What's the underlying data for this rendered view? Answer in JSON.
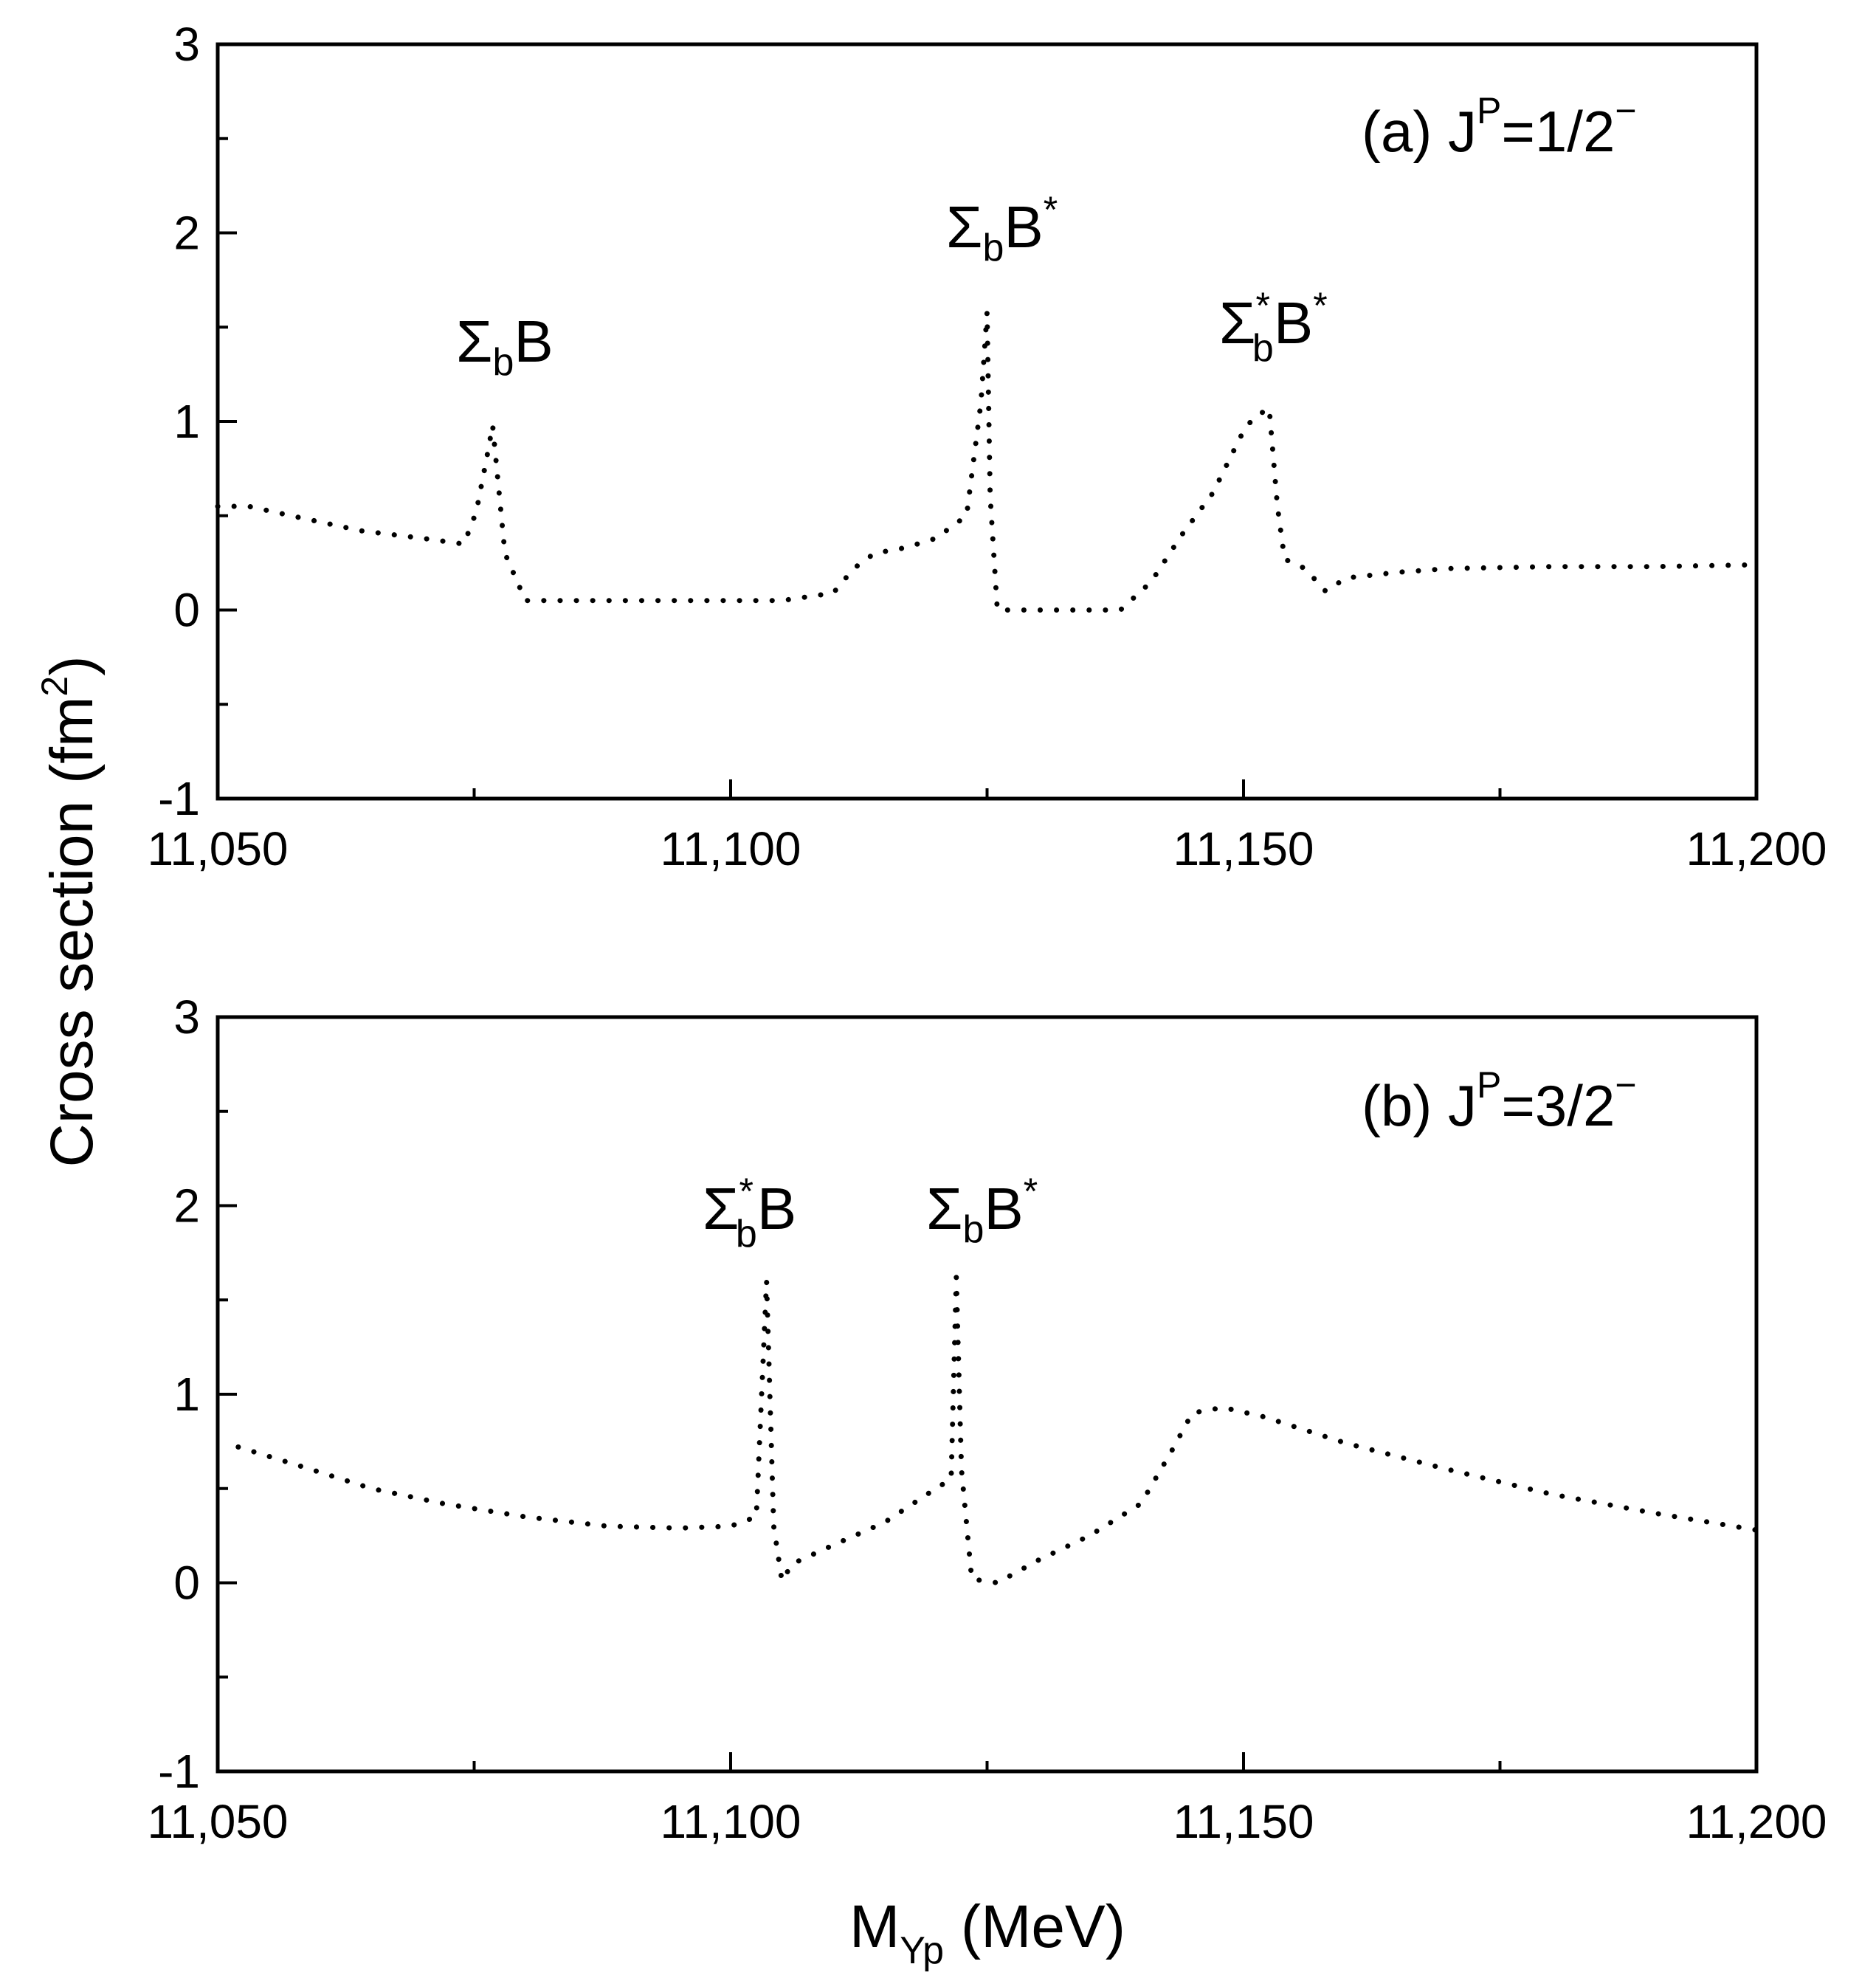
{
  "figure": {
    "ylabel_main": "Cross section (fm",
    "ylabel_sup": "2",
    "ylabel_close": ")",
    "xlabel_main": "M",
    "xlabel_sub": "Yp",
    "xlabel_unit": " (MeV)"
  },
  "chart_data": [
    {
      "type": "line",
      "title": "(a) J^P=1/2^-",
      "panel_label": {
        "prefix": "(a) J",
        "sup1": "P",
        "mid": "=1/2",
        "sup2": "−"
      },
      "xlabel": "M_Yp (MeV)",
      "ylabel": "Cross section (fm^2)",
      "xlim": [
        11050,
        11200
      ],
      "ylim": [
        -1,
        3
      ],
      "xticks": [
        11050,
        11100,
        11150,
        11200
      ],
      "xtick_labels": [
        "11,050",
        "11,100",
        "11,150",
        "11,200"
      ],
      "yticks": [
        -1,
        0,
        1,
        2,
        3
      ],
      "ytick_labels": [
        "-1",
        "0",
        "1",
        "2",
        "3"
      ],
      "line_style": "dotted",
      "series": [
        {
          "name": "J^P=1/2^-",
          "x": [
            11050,
            11053,
            11058,
            11064,
            11070,
            11074,
            11075.2,
            11076.2,
            11076.8,
            11078,
            11080,
            11085,
            11090,
            11095,
            11100,
            11105,
            11110,
            11112,
            11114,
            11117,
            11120,
            11123,
            11124.4,
            11125,
            11125.3,
            11126,
            11130,
            11135,
            11138,
            11141,
            11144,
            11147,
            11150,
            11151,
            11152.5,
            11153.3,
            11154,
            11156,
            11158,
            11160,
            11165,
            11170,
            11180,
            11190,
            11200
          ],
          "y": [
            0.55,
            0.55,
            0.49,
            0.42,
            0.38,
            0.35,
            0.52,
            0.8,
            0.98,
            0.3,
            0.05,
            0.05,
            0.05,
            0.05,
            0.05,
            0.05,
            0.09,
            0.22,
            0.3,
            0.33,
            0.38,
            0.5,
            1.1,
            1.58,
            0.6,
            0.0,
            0.0,
            0.0,
            0.0,
            0.15,
            0.4,
            0.62,
            0.95,
            1.02,
            1.07,
            0.55,
            0.27,
            0.22,
            0.1,
            0.17,
            0.2,
            0.22,
            0.23,
            0.23,
            0.24
          ]
        }
      ],
      "annotations": [
        {
          "main": "Σ",
          "sub": "b",
          "sup": "",
          "tail": "B",
          "tail_sup": ""
        },
        {
          "main": "Σ",
          "sub": "b",
          "sup": "",
          "tail": "B",
          "tail_sup": "*"
        },
        {
          "main": "Σ",
          "sub": "b",
          "sup": "*",
          "tail": "B",
          "tail_sup": "*"
        }
      ]
    },
    {
      "type": "line",
      "title": "(b) J^P=3/2^-",
      "panel_label": {
        "prefix": "(b) J",
        "sup1": "P",
        "mid": "=3/2",
        "sup2": "−"
      },
      "xlabel": "M_Yp (MeV)",
      "ylabel": "Cross section (fm^2)",
      "xlim": [
        11050,
        11200
      ],
      "ylim": [
        -1,
        3
      ],
      "xticks": [
        11050,
        11100,
        11150,
        11200
      ],
      "xtick_labels": [
        "11,050",
        "11,100",
        "11,150",
        "11,200"
      ],
      "yticks": [
        -1,
        0,
        1,
        2,
        3
      ],
      "ytick_labels": [
        "-1",
        "0",
        "1",
        "2",
        "3"
      ],
      "line_style": "dotted",
      "series": [
        {
          "name": "J^P=3/2^-",
          "x": [
            11052,
            11058,
            11065,
            11072,
            11080,
            11088,
            11095,
            11100,
            11102.5,
            11103.5,
            11104.2,
            11105,
            11106,
            11110,
            11115,
            11120,
            11121.5,
            11122,
            11122.5,
            11123.5,
            11126,
            11130,
            11135,
            11140,
            11143,
            11145,
            11148,
            11152,
            11160,
            11170,
            11180,
            11190,
            11200
          ],
          "y": [
            0.72,
            0.62,
            0.5,
            0.42,
            0.35,
            0.3,
            0.29,
            0.3,
            0.35,
            1.6,
            0.3,
            0.01,
            0.1,
            0.2,
            0.32,
            0.5,
            0.55,
            1.62,
            0.6,
            0.02,
            0.0,
            0.12,
            0.25,
            0.42,
            0.7,
            0.9,
            0.93,
            0.88,
            0.74,
            0.6,
            0.47,
            0.37,
            0.28
          ]
        }
      ],
      "annotations": [
        {
          "main": "Σ",
          "sub": "b",
          "sup": "*",
          "tail": "B",
          "tail_sup": ""
        },
        {
          "main": "Σ",
          "sub": "b",
          "sup": "",
          "tail": "B",
          "tail_sup": "*"
        }
      ]
    }
  ]
}
